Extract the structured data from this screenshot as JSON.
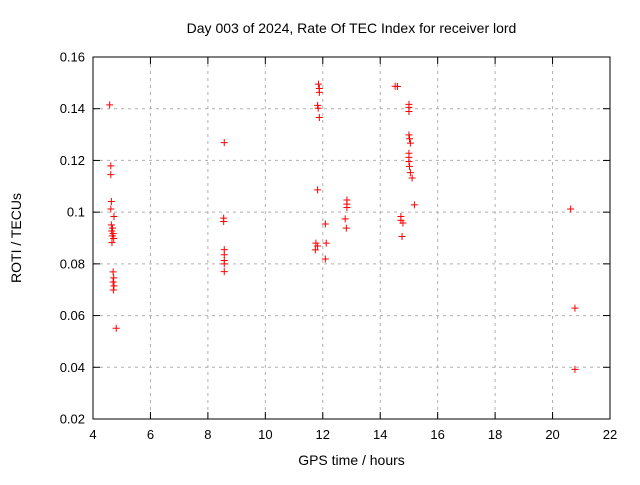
{
  "chart": {
    "title": "Day 003 of 2024, Rate Of TEC Index for receiver lord",
    "xlabel": "GPS time / hours",
    "ylabel": "ROTI / TECUs"
  },
  "chart_data": {
    "type": "scatter",
    "title": "Day 003 of 2024, Rate Of TEC Index for receiver lord",
    "xlabel": "GPS time / hours",
    "ylabel": "ROTI / TECUs",
    "xlim": [
      4,
      22
    ],
    "ylim": [
      0.02,
      0.16
    ],
    "xticks": [
      4,
      6,
      8,
      10,
      12,
      14,
      16,
      18,
      20,
      22
    ],
    "xtick_labels": [
      "4",
      "6",
      "8",
      "10",
      "12",
      "14",
      "16",
      "18",
      "20",
      "22"
    ],
    "yticks": [
      0.02,
      0.04,
      0.06,
      0.08,
      0.1,
      0.12,
      0.14,
      0.16
    ],
    "ytick_labels": [
      "0.02",
      "0.04",
      "0.06",
      "0.08",
      "0.1",
      "0.12",
      "0.14",
      "0.16"
    ],
    "grid": true,
    "legend_position": "none",
    "marker": "plus",
    "marker_color": "#ff0000",
    "grid_color": "#b0b0b0",
    "border_color": "#000000",
    "series": [
      {
        "name": "ROTI",
        "points": [
          [
            4.58,
            0.1415
          ],
          [
            4.62,
            0.1179
          ],
          [
            4.62,
            0.1145
          ],
          [
            4.64,
            0.1041
          ],
          [
            4.62,
            0.1012
          ],
          [
            4.73,
            0.0983
          ],
          [
            4.64,
            0.0951
          ],
          [
            4.68,
            0.0938
          ],
          [
            4.65,
            0.0927
          ],
          [
            4.7,
            0.0917
          ],
          [
            4.67,
            0.0908
          ],
          [
            4.72,
            0.0898
          ],
          [
            4.66,
            0.0882
          ],
          [
            4.7,
            0.0769
          ],
          [
            4.72,
            0.0746
          ],
          [
            4.7,
            0.073
          ],
          [
            4.73,
            0.0715
          ],
          [
            4.71,
            0.0699
          ],
          [
            4.81,
            0.0551
          ],
          [
            8.57,
            0.1269
          ],
          [
            8.55,
            0.0977
          ],
          [
            8.55,
            0.0964
          ],
          [
            8.57,
            0.0855
          ],
          [
            8.57,
            0.0835
          ],
          [
            8.57,
            0.0813
          ],
          [
            8.57,
            0.08
          ],
          [
            8.57,
            0.077
          ],
          [
            11.85,
            0.1495
          ],
          [
            11.88,
            0.1478
          ],
          [
            11.88,
            0.1463
          ],
          [
            11.82,
            0.1413
          ],
          [
            11.84,
            0.1402
          ],
          [
            11.88,
            0.1366
          ],
          [
            11.82,
            0.1086
          ],
          [
            12.09,
            0.0954
          ],
          [
            11.76,
            0.088
          ],
          [
            12.12,
            0.088
          ],
          [
            11.82,
            0.0869
          ],
          [
            11.74,
            0.0854
          ],
          [
            12.09,
            0.0819
          ],
          [
            12.84,
            0.1047
          ],
          [
            12.84,
            0.1031
          ],
          [
            12.84,
            0.1018
          ],
          [
            12.78,
            0.0974
          ],
          [
            12.82,
            0.0938
          ],
          [
            14.52,
            0.1487
          ],
          [
            14.6,
            0.1486
          ],
          [
            15.0,
            0.1417
          ],
          [
            15.0,
            0.1405
          ],
          [
            15.0,
            0.1389
          ],
          [
            15.0,
            0.1299
          ],
          [
            15.02,
            0.1284
          ],
          [
            15.05,
            0.1267
          ],
          [
            15.0,
            0.1228
          ],
          [
            15.0,
            0.1212
          ],
          [
            15.0,
            0.1196
          ],
          [
            15.02,
            0.1177
          ],
          [
            15.05,
            0.1153
          ],
          [
            15.11,
            0.1132
          ],
          [
            15.19,
            0.1028
          ],
          [
            14.72,
            0.0983
          ],
          [
            14.72,
            0.0968
          ],
          [
            14.79,
            0.0958
          ],
          [
            14.76,
            0.0906
          ],
          [
            20.63,
            0.1012
          ],
          [
            20.78,
            0.0629
          ],
          [
            20.78,
            0.0392
          ]
        ]
      }
    ]
  }
}
